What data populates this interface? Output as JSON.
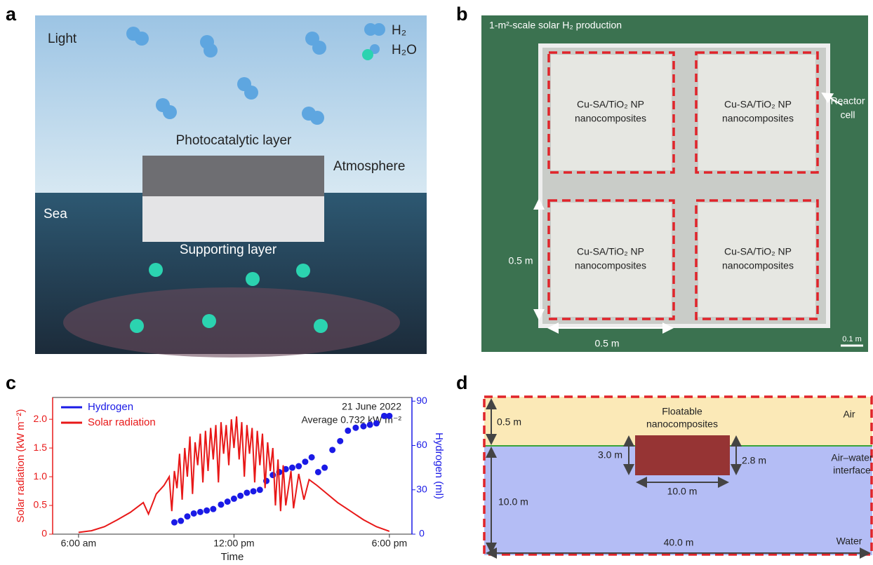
{
  "panels": {
    "a": "a",
    "b": "b",
    "c": "c",
    "d": "d"
  },
  "panel_a": {
    "light": "Light",
    "h2": "H₂",
    "h2o": "H₂O",
    "photocatalytic": "Photocatalytic layer",
    "atmosphere": "Atmosphere",
    "sea": "Sea",
    "supporting": "Supporting layer"
  },
  "panel_b": {
    "title": "1-m²-scale solar H₂ production",
    "reactor": "Reactor",
    "cell": "cell",
    "cells": [
      [
        "Cu-SA/TiO₂ NP",
        "nanocomposites"
      ],
      [
        "Cu-SA/TiO₂ NP",
        "nanocomposites"
      ],
      [
        "Cu-SA/TiO₂ NP",
        "nanocomposites"
      ],
      [
        "Cu-SA/TiO₂ NP",
        "nanocomposites"
      ]
    ],
    "side": "0.5 m",
    "bottom": "0.5 m",
    "scale": "0.1 m"
  },
  "chart_data": {
    "type": "line",
    "xlabel": "Time",
    "ylabel": "Solar radiation (kW m⁻²)",
    "y2label": "Hydrogen (ml)",
    "annotations": [
      "21 June 2022",
      "Average 0.732 kW m⁻²"
    ],
    "xlim": [
      5.0,
      18.87
    ],
    "xticks": [
      {
        "value": 6,
        "label": "6:00 am"
      },
      {
        "value": 12,
        "label": "12:00 pm"
      },
      {
        "value": 18,
        "label": "6:00 pm"
      }
    ],
    "ylim": [
      0,
      2.38
    ],
    "yticks": [
      0,
      0.5,
      {
        "value": 1,
        "label": "1.0"
      },
      1.5,
      {
        "value": 2,
        "label": "2.0"
      }
    ],
    "y2lim": [
      0,
      92.5
    ],
    "y2ticks": [
      0,
      30,
      60,
      90
    ],
    "legend": "upper-left",
    "series": [
      {
        "name": "Hydrogen",
        "color": "#1a1ae6",
        "type": "scatter",
        "axis": "y2",
        "x": [
          9.7,
          9.95,
          10.2,
          10.45,
          10.7,
          10.95,
          11.2,
          11.5,
          11.75,
          12.0,
          12.25,
          12.5,
          12.75,
          13.0,
          13.25,
          13.5,
          13.75,
          14.0,
          14.25,
          14.5,
          14.75,
          15.0,
          15.25,
          15.5,
          15.8,
          16.1,
          16.4,
          16.7,
          17.0,
          17.25,
          17.5,
          17.8,
          18.0
        ],
        "values": [
          8,
          9,
          12,
          14,
          15,
          16,
          17,
          20,
          22,
          24,
          26,
          28,
          29,
          30,
          36,
          40,
          42,
          44,
          45,
          46,
          49,
          52,
          42,
          45,
          57,
          63,
          70,
          72,
          73,
          74,
          75,
          80,
          80
        ]
      },
      {
        "name": "Solar radiation",
        "color": "#e81818",
        "type": "line",
        "x": [
          6.0,
          6.5,
          7.0,
          7.5,
          8.0,
          8.5,
          8.7,
          9.0,
          9.3,
          9.5,
          9.6,
          9.7,
          9.8,
          9.9,
          10.0,
          10.1,
          10.2,
          10.3,
          10.4,
          10.5,
          10.6,
          10.7,
          10.8,
          10.9,
          11.0,
          11.1,
          11.2,
          11.3,
          11.4,
          11.5,
          11.6,
          11.7,
          11.8,
          11.9,
          12.0,
          12.1,
          12.2,
          12.3,
          12.4,
          12.5,
          12.6,
          12.7,
          12.8,
          12.9,
          13.0,
          13.1,
          13.2,
          13.3,
          13.4,
          13.5,
          13.6,
          13.7,
          13.8,
          13.9,
          14.0,
          14.2,
          14.3,
          14.5,
          14.7,
          14.9,
          15.2,
          15.6,
          16.0,
          16.5,
          17.0,
          17.5,
          18.0
        ],
        "values": [
          0.03,
          0.06,
          0.13,
          0.25,
          0.38,
          0.55,
          0.35,
          0.7,
          0.85,
          1.0,
          0.4,
          1.1,
          0.8,
          1.4,
          0.6,
          1.5,
          1.0,
          1.7,
          0.7,
          1.6,
          1.2,
          1.75,
          0.9,
          1.8,
          1.1,
          1.85,
          1.3,
          1.9,
          0.9,
          1.95,
          1.4,
          1.9,
          1.2,
          2.0,
          1.5,
          2.05,
          1.3,
          1.95,
          1.0,
          1.9,
          1.4,
          1.85,
          0.9,
          1.8,
          1.2,
          1.75,
          0.8,
          1.6,
          1.1,
          1.5,
          0.5,
          1.3,
          0.4,
          1.2,
          0.5,
          1.1,
          0.45,
          1.05,
          0.6,
          0.95,
          0.85,
          0.7,
          0.55,
          0.4,
          0.25,
          0.13,
          0.05
        ]
      }
    ]
  },
  "panel_d": {
    "floatable": [
      "Floatable",
      "nanocomposites"
    ],
    "air": "Air",
    "interface": [
      "Air–water",
      "interface"
    ],
    "water": "Water",
    "air_height": "0.5 m",
    "block_height_left": "3.0 m",
    "block_height_right": "2.8 m",
    "block_width": "10.0 m",
    "water_depth": "10.0 m",
    "width": "40.0 m"
  }
}
